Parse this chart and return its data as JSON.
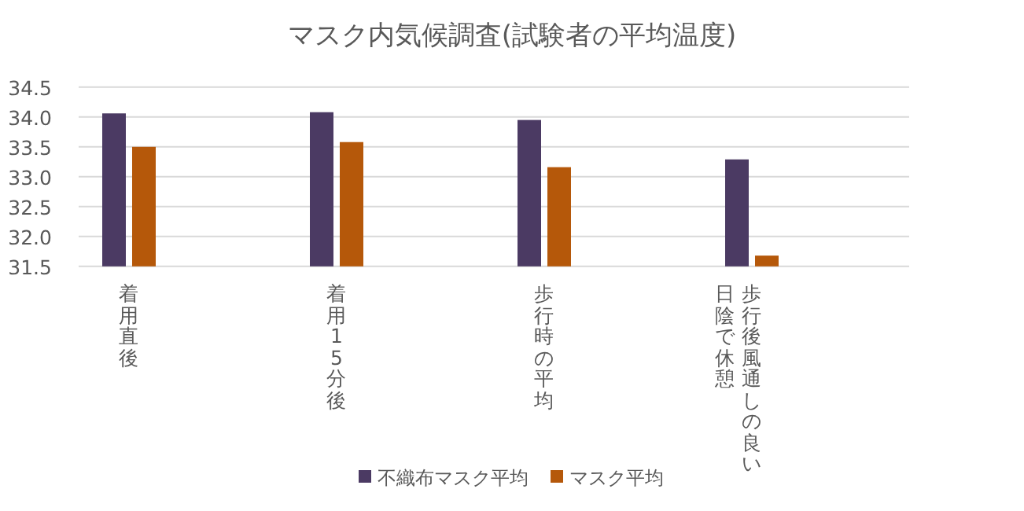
{
  "chart_data": {
    "type": "bar",
    "title": "マスク内気候調査(試験者の平均温度)",
    "categories": [
      "着用直後",
      "着用15分後",
      "歩行時の平均",
      "歩行後風通しの良い日陰で休憩"
    ],
    "series": [
      {
        "name": "不織布マスク平均",
        "color": "#4b3a63",
        "values": [
          34.06,
          34.08,
          33.95,
          33.29
        ]
      },
      {
        "name": "マスク平均",
        "color": "#b5580a",
        "values": [
          33.5,
          33.58,
          33.16,
          31.68
        ]
      }
    ],
    "ylim": [
      31.5,
      34.5
    ],
    "yticks": [
      31.5,
      {
        "value": 32,
        "label": "32.0"
      },
      32.5,
      {
        "value": 33,
        "label": "33.0"
      },
      33.5,
      {
        "value": 34,
        "label": "34.0"
      },
      34.5
    ],
    "grid": "y",
    "legend": "bottom"
  }
}
